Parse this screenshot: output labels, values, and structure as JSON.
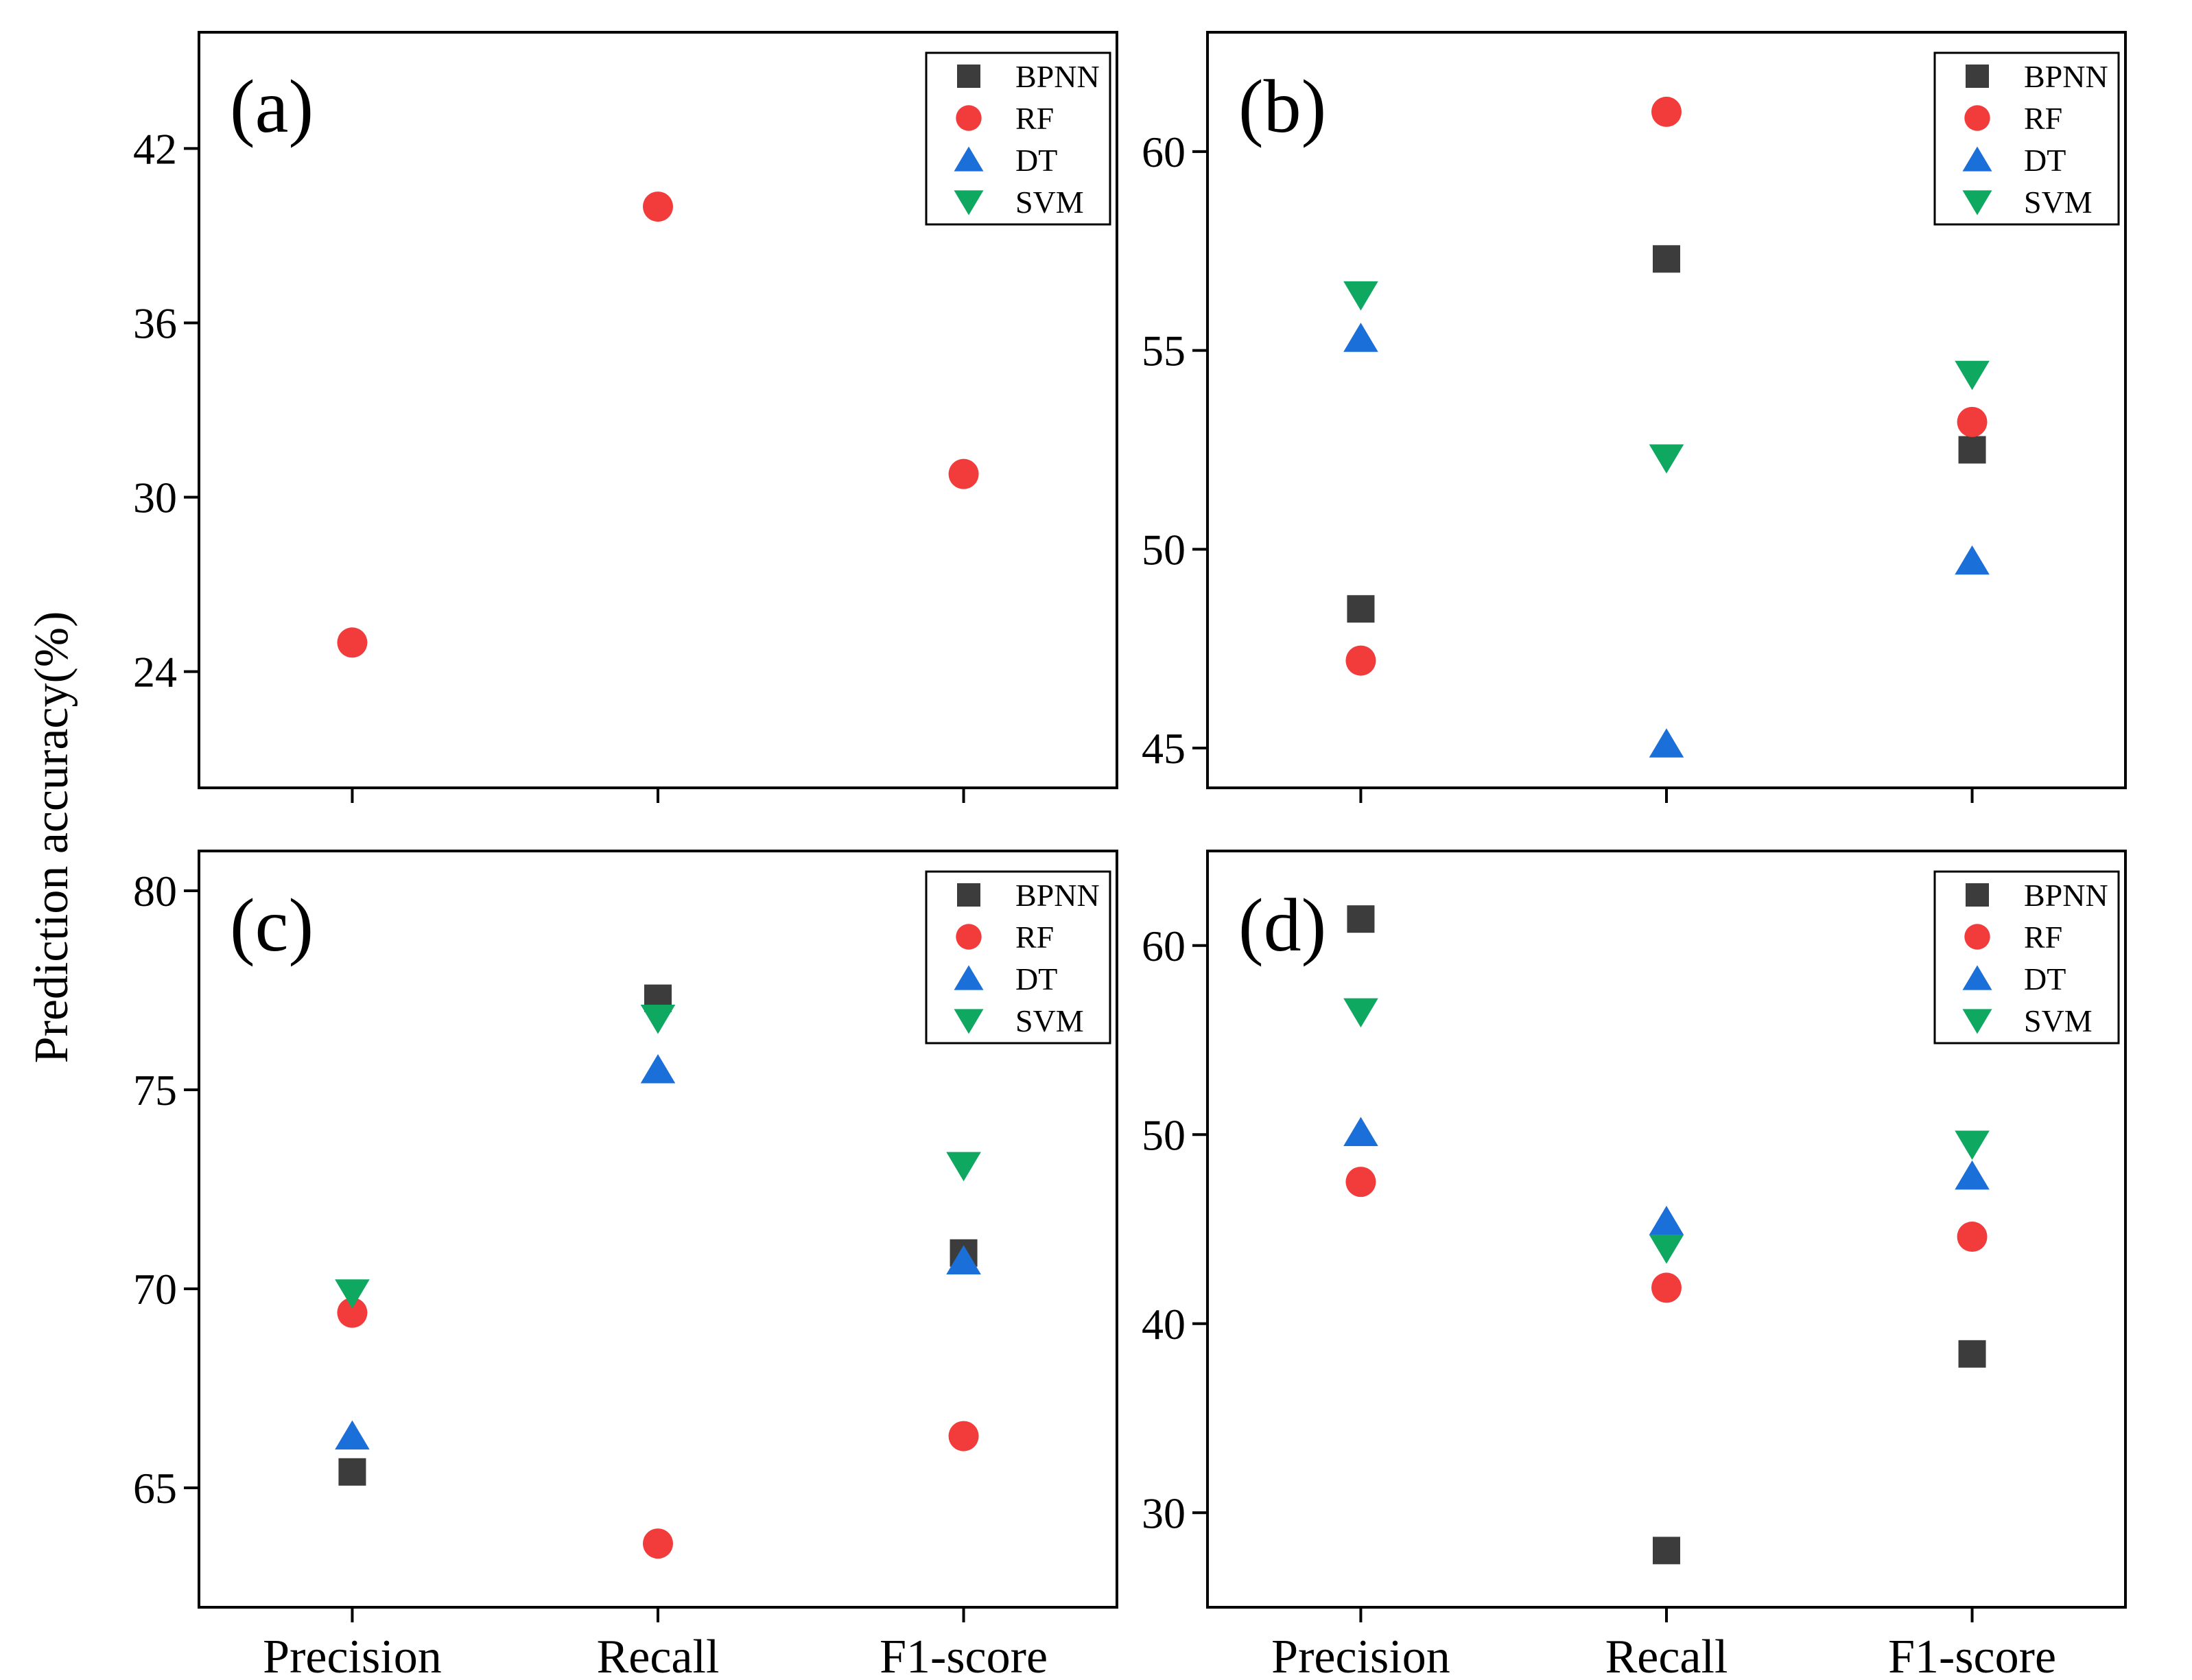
{
  "figure": {
    "ylabel": "Prediction accuracy(%)"
  },
  "chart_data": [
    {
      "type": "scatter",
      "panel": "(a)",
      "categories": [
        "Precision",
        "Recall",
        "F1-score"
      ],
      "ylim": [
        20,
        46
      ],
      "yticks": [
        24,
        30,
        36,
        42
      ],
      "show_x_labels": false,
      "series": [
        {
          "name": "BPNN",
          "values": [
            null,
            null,
            null
          ]
        },
        {
          "name": "RF",
          "values": [
            25.0,
            40.0,
            30.8
          ]
        },
        {
          "name": "DT",
          "values": [
            null,
            null,
            null
          ]
        },
        {
          "name": "SVM",
          "values": [
            null,
            null,
            null
          ]
        }
      ]
    },
    {
      "type": "scatter",
      "panel": "(b)",
      "categories": [
        "Precision",
        "Recall",
        "F1-score"
      ],
      "ylim": [
        44,
        63
      ],
      "yticks": [
        45,
        50,
        55,
        60
      ],
      "show_x_labels": false,
      "series": [
        {
          "name": "BPNN",
          "values": [
            48.5,
            57.3,
            52.5
          ]
        },
        {
          "name": "RF",
          "values": [
            47.2,
            61.0,
            53.2
          ]
        },
        {
          "name": "DT",
          "values": [
            55.3,
            45.1,
            49.7
          ]
        },
        {
          "name": "SVM",
          "values": [
            56.4,
            52.3,
            54.4
          ]
        }
      ]
    },
    {
      "type": "scatter",
      "panel": "(c)",
      "categories": [
        "Precision",
        "Recall",
        "F1-score"
      ],
      "ylim": [
        62,
        81
      ],
      "yticks": [
        65,
        70,
        75,
        80
      ],
      "show_x_labels": true,
      "series": [
        {
          "name": "BPNN",
          "values": [
            65.4,
            77.3,
            70.9
          ]
        },
        {
          "name": "RF",
          "values": [
            69.4,
            63.6,
            66.3
          ]
        },
        {
          "name": "DT",
          "values": [
            66.3,
            75.5,
            70.7
          ]
        },
        {
          "name": "SVM",
          "values": [
            69.9,
            76.8,
            73.1
          ]
        }
      ]
    },
    {
      "type": "scatter",
      "panel": "(d)",
      "categories": [
        "Precision",
        "Recall",
        "F1-score"
      ],
      "ylim": [
        25,
        65
      ],
      "yticks": [
        30,
        40,
        50,
        60
      ],
      "show_x_labels": true,
      "series": [
        {
          "name": "BPNN",
          "values": [
            61.4,
            28.0,
            38.4
          ]
        },
        {
          "name": "RF",
          "values": [
            47.5,
            41.9,
            44.6
          ]
        },
        {
          "name": "DT",
          "values": [
            50.1,
            45.4,
            47.8
          ]
        },
        {
          "name": "SVM",
          "values": [
            56.5,
            44.0,
            49.5
          ]
        }
      ]
    }
  ],
  "legend": [
    {
      "name": "BPNN",
      "label": "BPNN",
      "marker": "square",
      "color": "#3c3c3c"
    },
    {
      "name": "RF",
      "label": "RF",
      "marker": "circle",
      "color": "#f23b3b"
    },
    {
      "name": "DT",
      "label": "DT",
      "marker": "triangle-up",
      "color": "#1b6fd8"
    },
    {
      "name": "SVM",
      "label": "SVM",
      "marker": "triangle-down",
      "color": "#0ea860"
    }
  ]
}
